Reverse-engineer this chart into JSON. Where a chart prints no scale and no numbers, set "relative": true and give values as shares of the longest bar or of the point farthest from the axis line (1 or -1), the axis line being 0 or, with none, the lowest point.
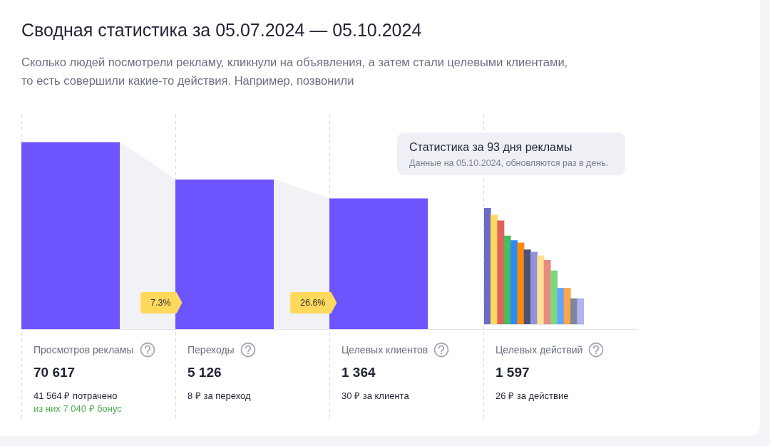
{
  "chart_data": [
    {
      "type": "other",
      "title": "Сводная статистика за 05.07.2024 — 05.10.2024",
      "subtitle": "Сколько людей посмотрели рекламу, кликнули на объявления, а затем стали целевыми клиентами,\nто есть совершили какие-то действия. Например, позвонили",
      "data_labels": true,
      "categories": [
        "Просмотров рекламы",
        "Переходы",
        "Целевых клиентов",
        "Целевых действий"
      ],
      "series": [
        {
          "color": "#6c54ff",
          "values": [
            70617,
            5126,
            1364,
            1597
          ]
        }
      ],
      "annotations": [
        "Статистика за 93 дня рекламы",
        "Данные на 05.10.2024, обновляются раз в день.",
        "7.3%",
        "26.6%",
        "41 564 ₽ потрачено",
        "из них 7 040 ₽ бонус",
        "8 ₽ за переход",
        "30 ₽ за клиента",
        "26 ₽ за действие"
      ]
    },
    {
      "type": "bar",
      "relative": true,
      "categories": [
        null,
        null,
        null,
        null,
        null,
        null,
        null,
        null,
        null,
        null,
        null,
        null,
        null,
        null,
        null
      ],
      "series": [
        {
          "colors": [
            "#6c6bc6",
            "#ffd862",
            "#e2625a",
            "#4cbb5a",
            "#2a8cf7",
            "#ff8a0c",
            "#4b5275",
            "#9590da",
            "#ffe294",
            "#ea8a80",
            "#7fd580",
            "#62a6fb",
            "#ffa64a",
            "#7c869c",
            "#b4b2ee"
          ],
          "values": [
            1,
            0.94,
            0.89,
            0.76,
            0.72,
            0.7,
            0.64,
            0.62,
            0.59,
            0.55,
            0.46,
            0.31,
            0.31,
            0.22,
            0.22
          ]
        }
      ]
    }
  ]
}
